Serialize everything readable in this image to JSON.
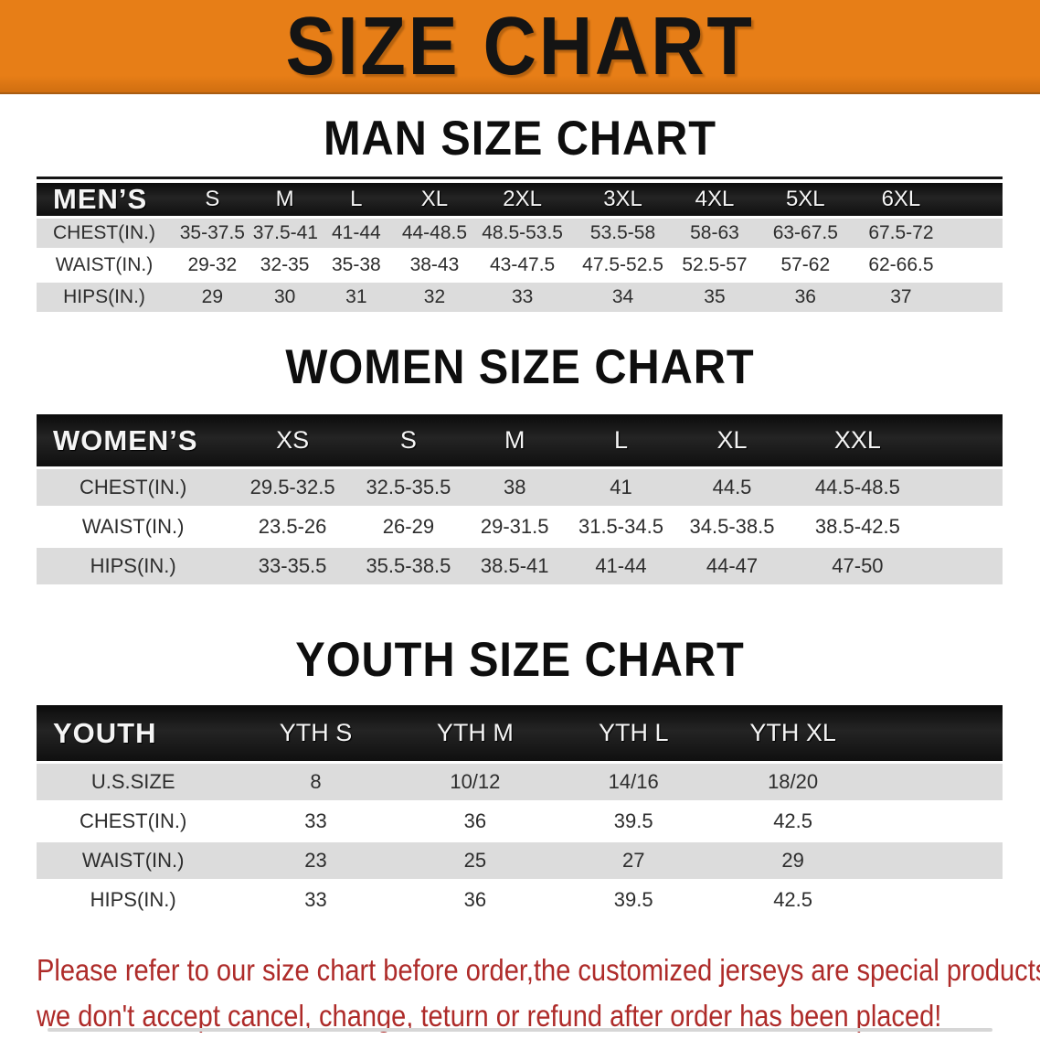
{
  "banner": {
    "title": "SIZE CHART"
  },
  "colors": {
    "banner_bg": "#E77E17",
    "header_bar": "#161616",
    "row_gray": "#DCDCDC",
    "disclaimer_red": "#AE2B29"
  },
  "sections": [
    {
      "id": "men",
      "title": "MAN SIZE CHART",
      "table": {
        "header_label": "MEN’S",
        "columns": [
          "S",
          "M",
          "L",
          "XL",
          "2XL",
          "3XL",
          "4XL",
          "5XL",
          "6XL"
        ],
        "rows": [
          {
            "label": "CHEST(IN.)",
            "values": [
              "35-37.5",
              "37.5-41",
              "41-44",
              "44-48.5",
              "48.5-53.5",
              "53.5-58",
              "58-63",
              "63-67.5",
              "67.5-72"
            ]
          },
          {
            "label": "WAIST(IN.)",
            "values": [
              "29-32",
              "32-35",
              "35-38",
              "38-43",
              "43-47.5",
              "47.5-52.5",
              "52.5-57",
              "57-62",
              "62-66.5"
            ]
          },
          {
            "label": "HIPS(IN.)",
            "values": [
              "29",
              "30",
              "31",
              "32",
              "33",
              "34",
              "35",
              "36",
              "37"
            ]
          }
        ]
      }
    },
    {
      "id": "women",
      "title": "WOMEN SIZE CHART",
      "table": {
        "header_label": "WOMEN’S",
        "columns": [
          "XS",
          "S",
          "M",
          "L",
          "XL",
          "XXL"
        ],
        "rows": [
          {
            "label": "CHEST(IN.)",
            "values": [
              "29.5-32.5",
              "32.5-35.5",
              "38",
              "41",
              "44.5",
              "44.5-48.5"
            ]
          },
          {
            "label": "WAIST(IN.)",
            "values": [
              "23.5-26",
              "26-29",
              "29-31.5",
              "31.5-34.5",
              "34.5-38.5",
              "38.5-42.5"
            ]
          },
          {
            "label": "HIPS(IN.)",
            "values": [
              "33-35.5",
              "35.5-38.5",
              "38.5-41",
              "41-44",
              "44-47",
              "47-50"
            ]
          }
        ]
      }
    },
    {
      "id": "youth",
      "title": "YOUTH SIZE CHART",
      "table": {
        "header_label": "YOUTH",
        "columns": [
          "YTH S",
          "YTH M",
          "YTH L",
          "YTH XL"
        ],
        "rows": [
          {
            "label": "U.S.SIZE",
            "values": [
              "8",
              "10/12",
              "14/16",
              "18/20"
            ]
          },
          {
            "label": "CHEST(IN.)",
            "values": [
              "33",
              "36",
              "39.5",
              "42.5"
            ]
          },
          {
            "label": "WAIST(IN.)",
            "values": [
              "23",
              "25",
              "27",
              "29"
            ]
          },
          {
            "label": "HIPS(IN.)",
            "values": [
              "33",
              "36",
              "39.5",
              "42.5"
            ]
          }
        ]
      }
    }
  ],
  "disclaimer": {
    "line1": "Please refer to our size chart before order,the customized jerseys are special products,",
    "line2": "we don't accept cancel, change, teturn or refund after order has been placed!"
  }
}
